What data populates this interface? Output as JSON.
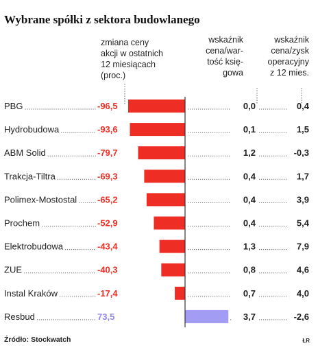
{
  "chart_data": {
    "type": "bar",
    "title": "Wybrane spółki z sektora budowlanego",
    "column_headers": {
      "price_change": [
        "zmiana ceny",
        "akcji w ostatnich",
        "12 miesiącach",
        "(proc.)"
      ],
      "book_value": [
        "wskaźnik",
        "cena/war-",
        "tość księ-",
        "gowa"
      ],
      "pe_ratio": [
        "wskaźnik",
        "cena/zysk",
        "operacyjny",
        "z 12 mies."
      ]
    },
    "categories": [
      "PBG",
      "Hydrobudowa",
      "ABM Solid",
      "Trakcja-Tiltra",
      "Polimex-Mostostal",
      "Prochem",
      "Elektrobudowa",
      "ZUE",
      "Instal Kraków",
      "Resbud"
    ],
    "series": [
      {
        "key": "price_change",
        "values": [
          -96.5,
          -93.6,
          -79.7,
          -69.3,
          -65.2,
          -52.9,
          -43.4,
          -40.3,
          -17.4,
          73.5
        ],
        "labels": [
          "-96,5",
          "-93,6",
          "-79,7",
          "-69,3",
          "-65,2",
          "-52,9",
          "-43,4",
          "-40,3",
          "-17,4",
          "73,5"
        ]
      },
      {
        "key": "book_value",
        "values": [
          0.0,
          0.1,
          1.2,
          0.4,
          0.4,
          0.4,
          1.3,
          0.8,
          0.7,
          3.7
        ],
        "labels": [
          "0,0",
          "0,1",
          "1,2",
          "0,4",
          "0,4",
          "0,4",
          "1,3",
          "0,8",
          "0,7",
          "3,7"
        ]
      },
      {
        "key": "pe_ratio",
        "values": [
          0.4,
          1.5,
          -0.3,
          1.7,
          3.9,
          5.4,
          7.9,
          4.6,
          4.0,
          -2.6
        ],
        "labels": [
          "0,4",
          "1,5",
          "-0,3",
          "1,7",
          "3,9",
          "5,4",
          "7,9",
          "4,6",
          "4,0",
          "-2,6"
        ]
      }
    ],
    "colors": {
      "negative": "#ee2e24",
      "positive": "#a29cf4",
      "negative_label": "#ee2e24",
      "positive_label": "#8f86ee",
      "text": "#222222",
      "dots": "#666666"
    },
    "source": "Źródło: Stockwatch",
    "logo": "ŁR"
  }
}
